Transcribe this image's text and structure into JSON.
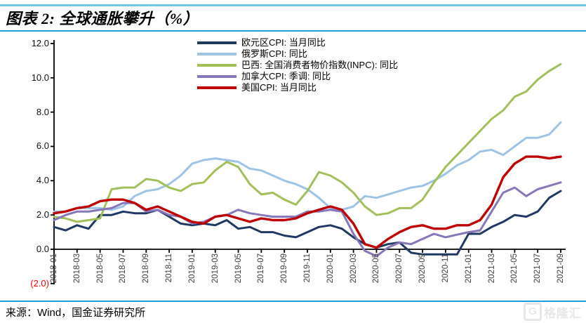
{
  "header": {
    "title": "图表 2: 全球通胀攀升（%）"
  },
  "footer": {
    "source": "来源：Wind，国金证券研究所"
  },
  "watermark": {
    "logo_letter": "G",
    "text": "格隆汇"
  },
  "colors": {
    "rule_top": "#6FC6E9",
    "rule_accent": "#1B9DE2",
    "axis": "#000000",
    "negative_tick": "#FF0000",
    "watermark": "#E7E7E7"
  },
  "chart_data": {
    "type": "line",
    "title": "全球通胀攀升（%）",
    "x_start": "2018-01",
    "x_end": "2021-09",
    "x_tick_labels": [
      "2018-01",
      "2018-03",
      "2018-05",
      "2018-07",
      "2018-09",
      "2018-11",
      "2019-01",
      "2019-03",
      "2019-05",
      "2019-07",
      "2019-09",
      "2019-11",
      "2020-01",
      "2020-03",
      "2020-05",
      "2020-07",
      "2020-09",
      "2020-11",
      "2021-01",
      "2021-03",
      "2021-05",
      "2021-07",
      "2021-09"
    ],
    "y_ticks": [
      12.0,
      10.0,
      8.0,
      6.0,
      4.0,
      2.0,
      0.0,
      -2.0
    ],
    "y_tick_labels": [
      "12.0",
      "10.0",
      "8.0",
      "6.0",
      "4.0",
      "2.0",
      "0.0",
      "(2.0)"
    ],
    "ylim": [
      -2.0,
      12.0
    ],
    "grid": false,
    "legend_position": "top-center",
    "series": [
      {
        "name": "欧元区CPI: 当月同比",
        "color": "#1F3864",
        "values": [
          1.3,
          1.1,
          1.4,
          1.2,
          2.0,
          2.0,
          2.2,
          2.1,
          2.1,
          2.3,
          1.9,
          1.5,
          1.4,
          1.5,
          1.4,
          1.7,
          1.2,
          1.3,
          1.0,
          1.0,
          0.8,
          0.7,
          1.0,
          1.3,
          1.4,
          1.2,
          0.7,
          0.3,
          0.1,
          0.3,
          0.4,
          -0.2,
          -0.3,
          -0.3,
          -0.3,
          -0.3,
          0.9,
          0.9,
          1.3,
          1.6,
          2.0,
          1.9,
          2.2,
          3.0,
          3.4
        ]
      },
      {
        "name": "俄罗斯CPI: 同比",
        "color": "#9DC3E6",
        "values": [
          2.2,
          2.2,
          2.4,
          2.4,
          2.4,
          2.3,
          2.5,
          3.1,
          3.4,
          3.5,
          3.8,
          4.3,
          5.0,
          5.2,
          5.3,
          5.2,
          5.1,
          4.7,
          4.6,
          4.3,
          4.0,
          3.8,
          3.5,
          3.0,
          2.4,
          2.3,
          2.5,
          3.1,
          3.0,
          3.2,
          3.4,
          3.6,
          3.7,
          4.0,
          4.4,
          4.9,
          5.2,
          5.7,
          5.8,
          5.5,
          6.0,
          6.5,
          6.5,
          6.7,
          7.4
        ]
      },
      {
        "name": "巴西: 全国消费者物价指数(INPC): 同比",
        "color": "#A2C059",
        "values": [
          1.9,
          1.8,
          1.6,
          1.7,
          1.8,
          3.5,
          3.6,
          3.6,
          4.1,
          4.0,
          3.6,
          3.4,
          3.8,
          3.9,
          4.6,
          5.1,
          4.8,
          3.8,
          3.2,
          3.3,
          2.9,
          2.6,
          3.4,
          4.5,
          4.3,
          3.9,
          3.3,
          2.5,
          2.0,
          2.1,
          2.4,
          2.4,
          2.9,
          3.9,
          4.8,
          5.5,
          6.2,
          6.9,
          7.6,
          8.1,
          8.9,
          9.2,
          9.9,
          10.4,
          10.8
        ]
      },
      {
        "name": "加拿大CPI: 季调: 同比",
        "color": "#8776BC",
        "values": [
          1.7,
          2.0,
          2.2,
          2.2,
          2.3,
          2.4,
          2.7,
          2.7,
          2.2,
          2.3,
          2.0,
          1.9,
          1.5,
          1.6,
          1.9,
          2.0,
          2.3,
          2.1,
          2.0,
          1.9,
          1.9,
          1.9,
          2.2,
          2.2,
          2.3,
          2.2,
          0.9,
          -0.1,
          -0.4,
          0.1,
          0.4,
          0.3,
          0.6,
          0.9,
          0.7,
          0.85,
          1.0,
          1.1,
          2.2,
          3.3,
          3.6,
          3.1,
          3.5,
          3.7,
          3.9
        ]
      },
      {
        "name": "美国CPI: 当月同比",
        "color": "#C00000",
        "values": [
          2.1,
          2.2,
          2.4,
          2.5,
          2.8,
          2.9,
          2.9,
          2.7,
          2.3,
          2.5,
          2.2,
          1.9,
          1.6,
          1.5,
          1.9,
          2.0,
          1.8,
          1.6,
          1.8,
          1.7,
          1.7,
          1.8,
          2.1,
          2.3,
          2.5,
          2.3,
          1.5,
          0.3,
          0.1,
          0.6,
          1.0,
          1.3,
          1.4,
          1.2,
          1.2,
          1.4,
          1.4,
          1.7,
          2.6,
          4.2,
          5.0,
          5.4,
          5.4,
          5.3,
          5.4
        ]
      }
    ]
  }
}
